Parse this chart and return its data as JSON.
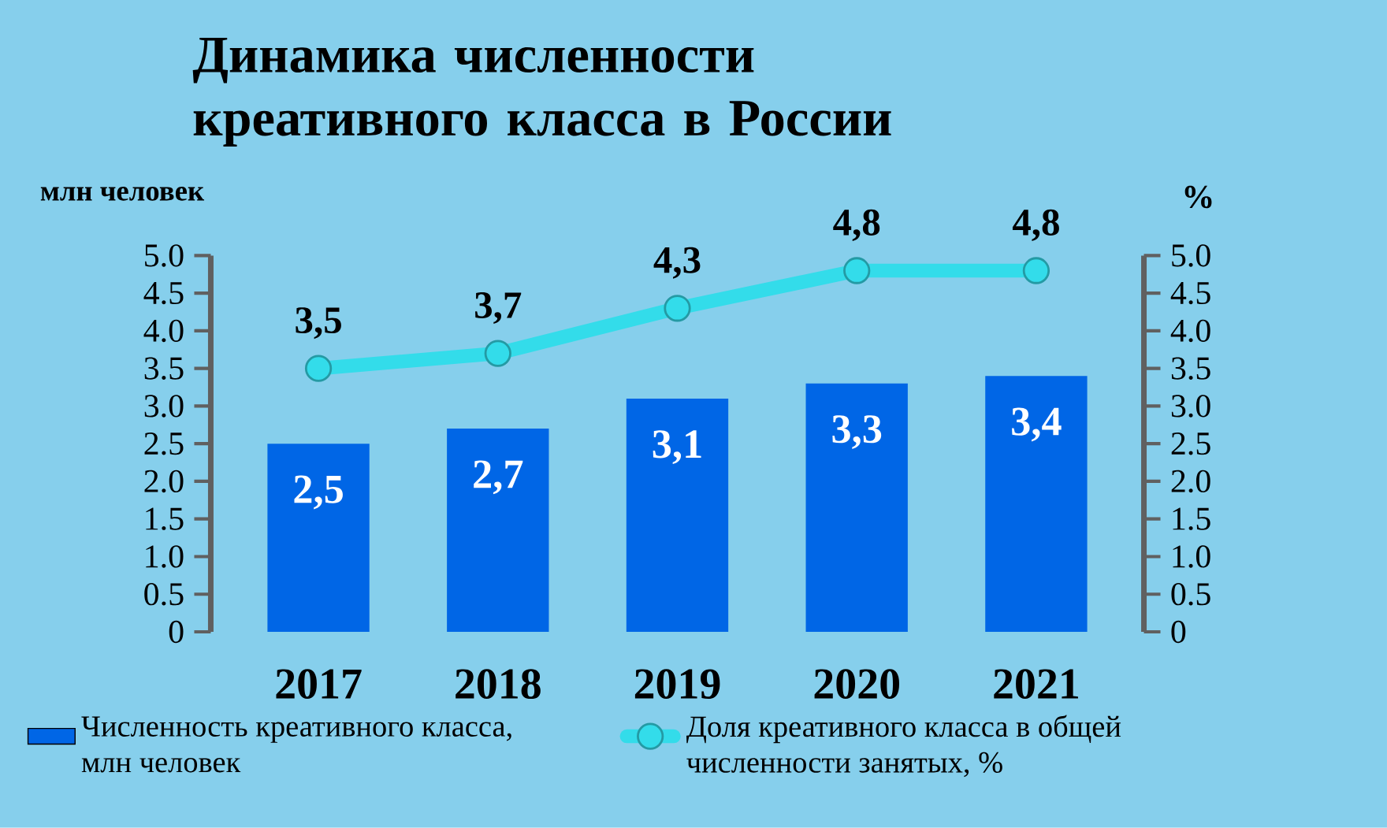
{
  "chart_data": {
    "type": "bar",
    "title": "Динамика численности креативного класса в России",
    "categories": [
      "2017",
      "2018",
      "2019",
      "2020",
      "2021"
    ],
    "ylabel": "млн человек",
    "y2label": "%",
    "ylim": [
      0,
      5
    ],
    "yticks": [
      0,
      0.5,
      {
        "value": 1,
        "label": "1.0"
      },
      1.5,
      {
        "value": 2,
        "label": "2.0"
      },
      2.5,
      {
        "value": 3,
        "label": "3.0"
      },
      3.5,
      {
        "value": 4,
        "label": "4.0"
      },
      4.5,
      {
        "value": 5,
        "label": "5.0"
      }
    ],
    "y2lim": [
      0,
      5
    ],
    "y2ticks": [
      0,
      0.5,
      {
        "value": 1,
        "label": "1.0"
      },
      1.5,
      {
        "value": 2,
        "label": "2.0"
      },
      2.5,
      {
        "value": 3,
        "label": "3.0"
      },
      3.5,
      {
        "value": 4,
        "label": "4.0"
      },
      4.5,
      {
        "value": 5,
        "label": "5.0"
      }
    ],
    "legend": "bottom",
    "series": [
      {
        "name": "Численность креативного класса, млн человек",
        "color": "#0066e6",
        "values": [
          2.5,
          2.7,
          3.1,
          3.3,
          3.4
        ],
        "value_labels": [
          "2,5",
          "2,7",
          "3,1",
          "3,3",
          "3,4"
        ]
      },
      {
        "name": "Доля креативного класса в общей численности занятых, %",
        "type": "line",
        "axis": "y2",
        "color": "#33dcea",
        "marker": "circle",
        "line_style": "solid",
        "values": [
          3.5,
          3.7,
          4.3,
          4.8,
          4.8
        ],
        "value_labels": [
          "3,5",
          "3,7",
          "4,3",
          "4,8",
          "4,8"
        ]
      }
    ]
  }
}
